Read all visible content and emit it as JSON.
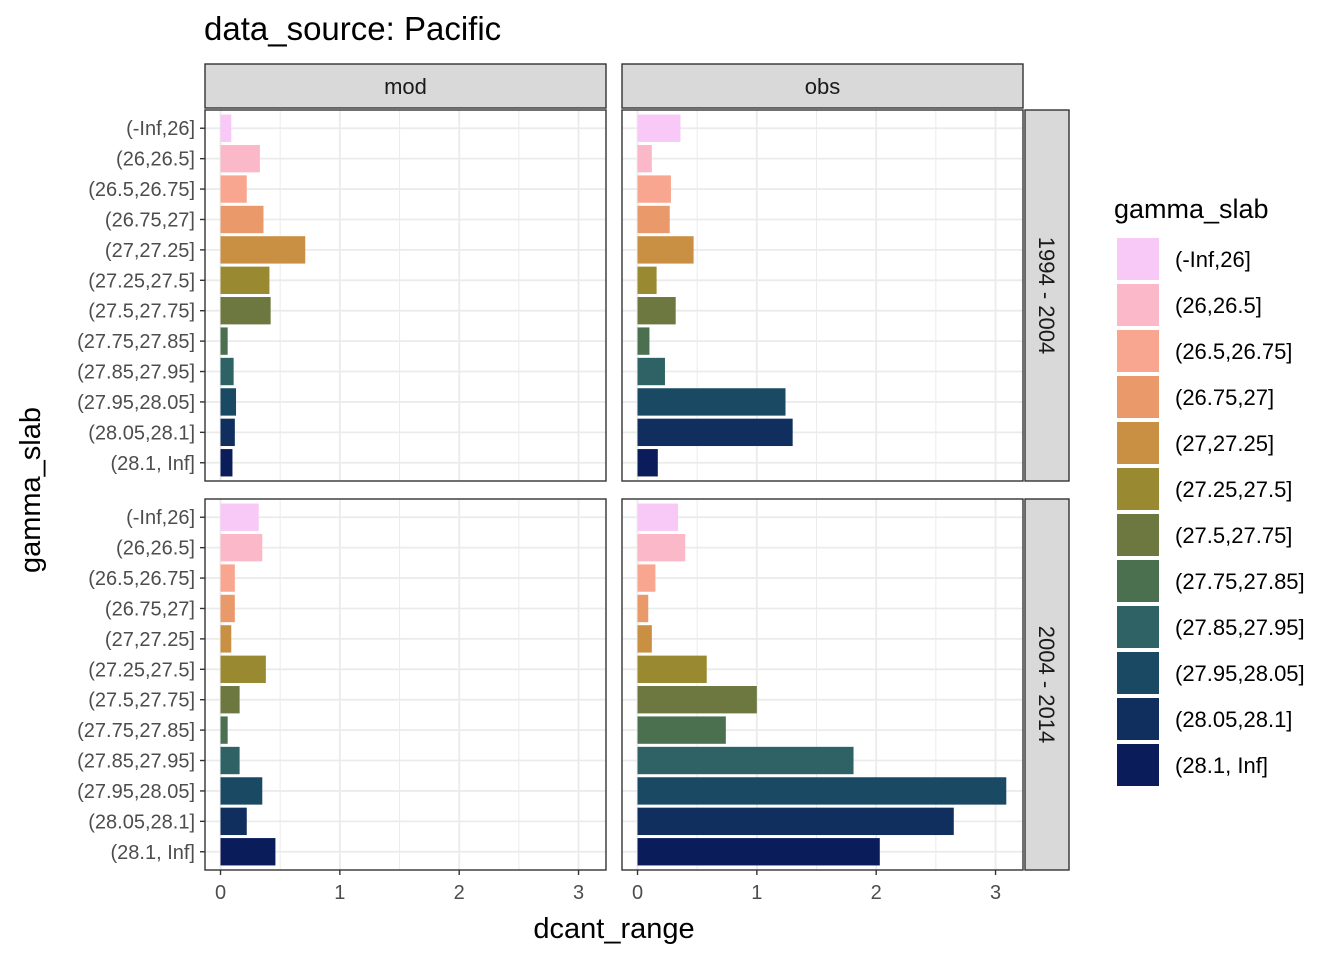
{
  "chart_data": {
    "type": "bar",
    "orientation": "horizontal",
    "title": "data_source: Pacific",
    "xlabel": "dcant_range",
    "ylabel": "gamma_slab",
    "xlim": [
      -0.13,
      3.23
    ],
    "xticks": [
      0,
      1,
      2,
      3
    ],
    "grid": true,
    "legend": {
      "title": "gamma_slab",
      "placement": "right"
    },
    "categories": [
      "(-Inf,26]",
      "(26,26.5]",
      "(26.5,26.75]",
      "(26.75,27]",
      "(27,27.25]",
      "(27.25,27.5]",
      "(27.5,27.75]",
      "(27.75,27.85]",
      "(27.85,27.95]",
      "(27.95,28.05]",
      "(28.05,28.1]",
      "(28.1, Inf]"
    ],
    "colors": [
      "#f8c8f6",
      "#fbb8c8",
      "#f8a68f",
      "#ea9a6a",
      "#c98f42",
      "#998a32",
      "#6c7840",
      "#4a7050",
      "#2e6264",
      "#1a4a63",
      "#102e5e",
      "#0a1c5a"
    ],
    "facet_cols": [
      "mod",
      "obs"
    ],
    "facet_rows": [
      "1994 - 2004",
      "2004 - 2014"
    ],
    "panels": [
      {
        "row": "1994 - 2004",
        "col": "mod",
        "values": [
          0.09,
          0.33,
          0.22,
          0.36,
          0.71,
          0.41,
          0.42,
          0.06,
          0.11,
          0.13,
          0.12,
          0.1
        ]
      },
      {
        "row": "1994 - 2004",
        "col": "obs",
        "values": [
          0.36,
          0.12,
          0.28,
          0.27,
          0.47,
          0.16,
          0.32,
          0.1,
          0.23,
          1.24,
          1.3,
          0.17
        ]
      },
      {
        "row": "2004 - 2014",
        "col": "mod",
        "values": [
          0.32,
          0.35,
          0.12,
          0.12,
          0.09,
          0.38,
          0.16,
          0.06,
          0.16,
          0.35,
          0.22,
          0.46
        ]
      },
      {
        "row": "2004 - 2014",
        "col": "obs",
        "values": [
          0.34,
          0.4,
          0.15,
          0.09,
          0.12,
          0.58,
          1.0,
          0.74,
          1.81,
          3.09,
          2.65,
          2.03
        ]
      }
    ]
  }
}
